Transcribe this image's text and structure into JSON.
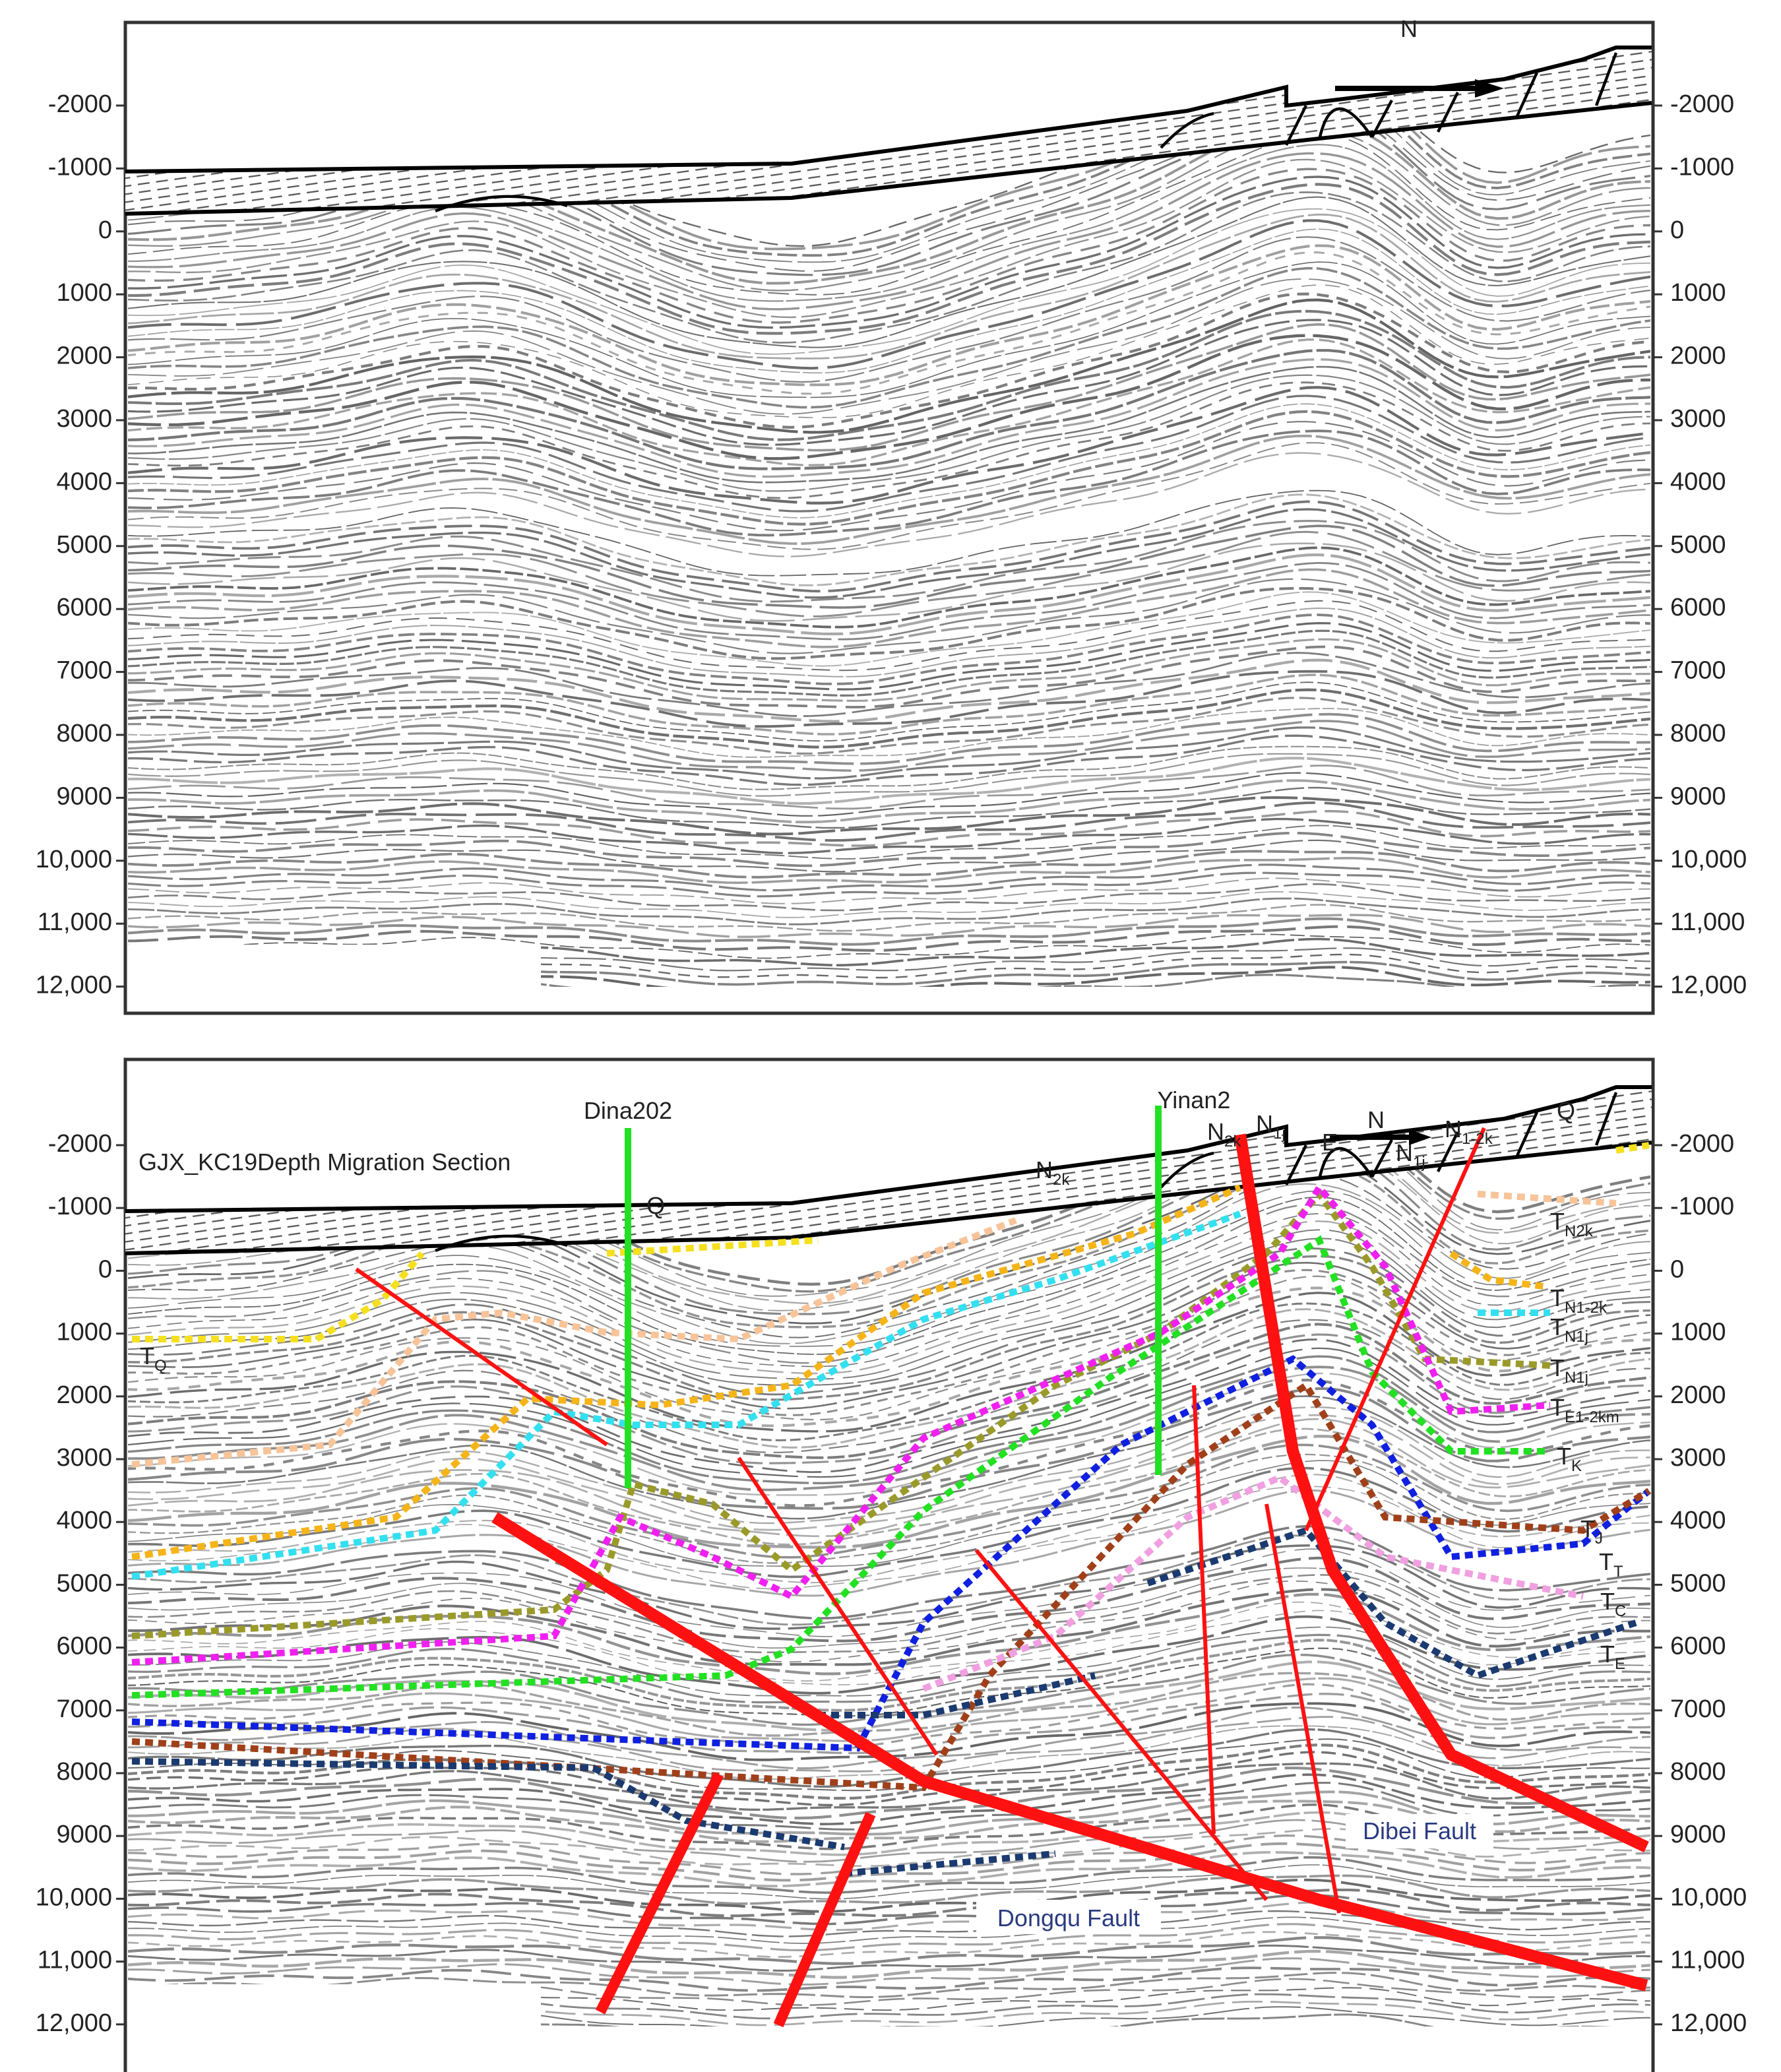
{
  "depth_ticks": [
    -2000,
    -1000,
    0,
    1000,
    2000,
    3000,
    4000,
    5000,
    6000,
    7000,
    8000,
    9000,
    {
      "value": 10000,
      "label": "10,000"
    },
    {
      "value": 11000,
      "label": "11,000"
    },
    {
      "value": 12000,
      "label": "12,000"
    }
  ],
  "top_panel": {
    "compass": "N"
  },
  "bottom_panel": {
    "title": "GJX_KC19Depth Migration Section",
    "compass": "N",
    "wells": [
      "Dina202",
      "Yinan2"
    ],
    "formation_labels": [
      {
        "base": "Q"
      },
      {
        "base": "N",
        "sub": "2k"
      },
      {
        "base": "N",
        "sub": "2k"
      },
      {
        "base": "N",
        "sub": "1j"
      },
      {
        "base": "E"
      },
      {
        "base": "N",
        "sub": "1j"
      },
      {
        "base": "N",
        "sub": "1-2k"
      },
      {
        "base": "Q"
      }
    ],
    "horizon_labels": [
      {
        "base": "T",
        "sub": "Q"
      },
      {
        "base": "T",
        "sub": "N2k"
      },
      {
        "base": "T",
        "sub": "N1-2k"
      },
      {
        "base": "T",
        "sub": "N1j"
      },
      {
        "base": "T",
        "sub": "N1j"
      },
      {
        "base": "T",
        "sub": "E1-2km"
      },
      {
        "base": "T",
        "sub": "K"
      },
      {
        "base": "T",
        "sub": "J"
      },
      {
        "base": "T",
        "sub": "T"
      },
      {
        "base": "T",
        "sub": "C"
      },
      {
        "base": "T",
        "sub": "E"
      }
    ],
    "fault_labels": [
      "Dongqu Fault",
      "Dibei Fault"
    ]
  }
}
